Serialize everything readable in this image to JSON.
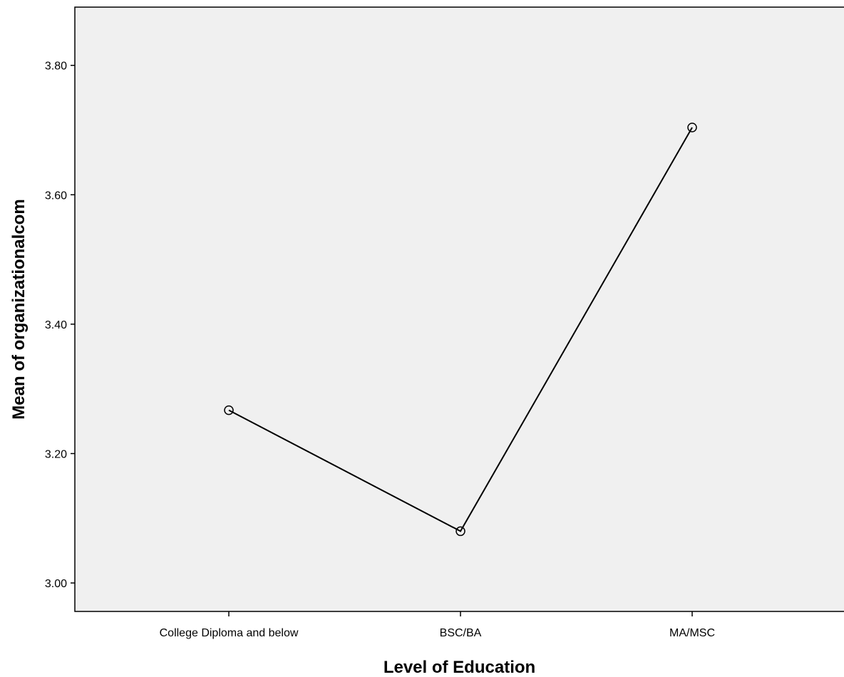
{
  "chart_data": {
    "type": "line",
    "title": "",
    "xlabel": "Level of Education",
    "ylabel": "Mean of organizationalcom",
    "categories": [
      "College Diploma and below",
      "BSC/BA",
      "MA/MSC"
    ],
    "series": [
      {
        "values": [
          3.267,
          3.08,
          3.704
        ]
      }
    ],
    "ylim": [
      2.956,
      3.89
    ],
    "yticks": [
      3.0,
      3.2,
      3.4,
      3.6,
      3.8
    ],
    "ytick_labels": [
      "3.00",
      "3.20",
      "3.40",
      "3.60",
      "3.80"
    ],
    "grid": false,
    "legend": "none",
    "marker": "open-circle",
    "colors": {
      "plot_background": "#f0f0f0",
      "line": "#000000"
    }
  }
}
